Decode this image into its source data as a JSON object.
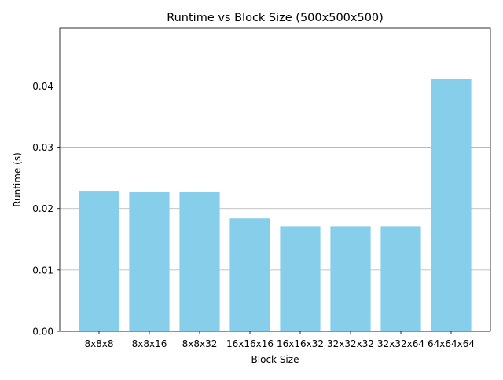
{
  "chart_data": {
    "type": "bar",
    "title": "Runtime vs Block Size (500x500x500)",
    "xlabel": "Block Size",
    "ylabel": "Runtime (s)",
    "categories": [
      "8x8x8",
      "8x8x16",
      "8x8x32",
      "16x16x16",
      "16x16x32",
      "32x32x32",
      "32x32x64",
      "64x64x64"
    ],
    "values": [
      0.0229,
      0.0227,
      0.0227,
      0.0184,
      0.0171,
      0.0171,
      0.0171,
      0.0411
    ],
    "ylim": [
      0,
      0.0494
    ],
    "yticks": [
      0.0,
      0.01,
      0.02,
      0.03,
      0.04
    ],
    "ytick_labels": [
      "0.00",
      "0.01",
      "0.02",
      "0.03",
      "0.04"
    ],
    "grid": "y",
    "legend": "none",
    "bar_color": "#87ceeb"
  }
}
